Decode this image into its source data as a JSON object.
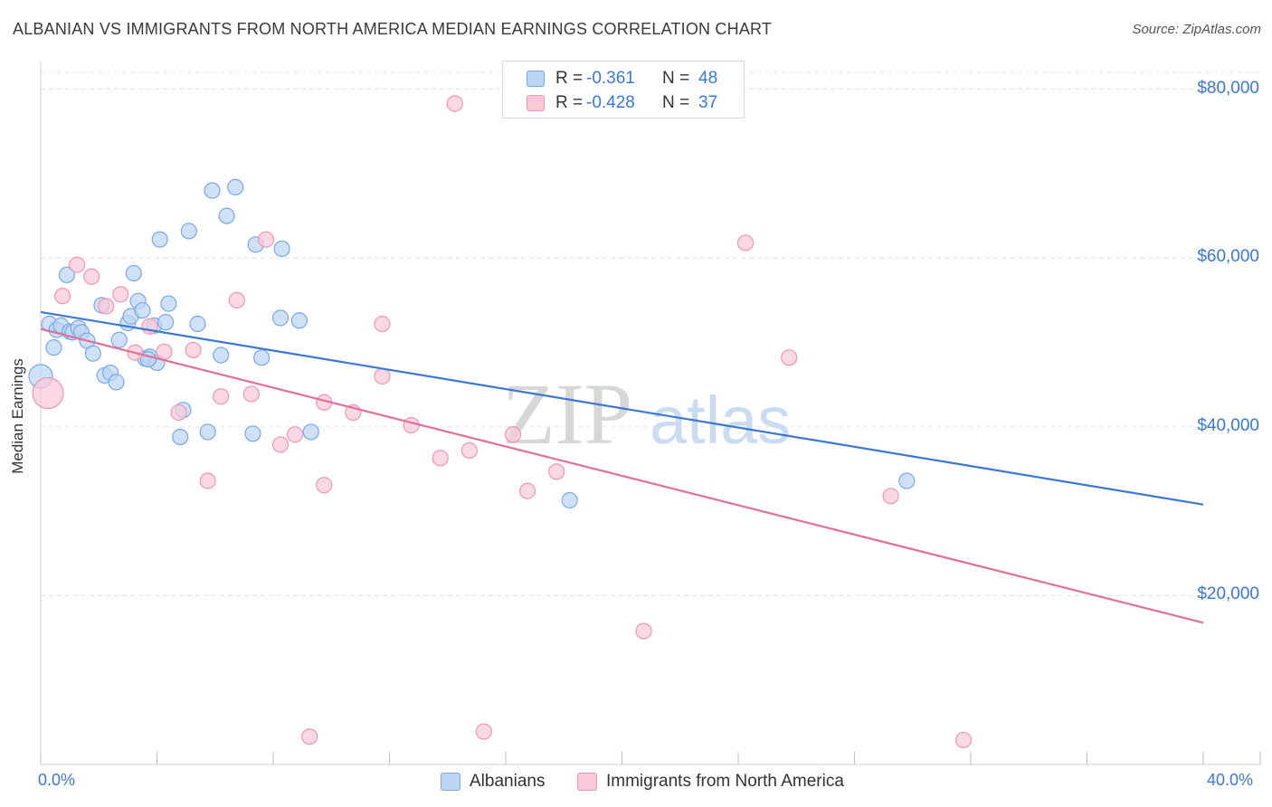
{
  "title": "ALBANIAN VS IMMIGRANTS FROM NORTH AMERICA MEDIAN EARNINGS CORRELATION CHART",
  "source": "Source: ZipAtlas.com",
  "watermark": {
    "zip": "ZIP",
    "atlas": "atlas"
  },
  "legend": {
    "rows": [
      {
        "r_label": "R =",
        "r_value": "-0.361",
        "n_label": "N =",
        "n_value": "48"
      },
      {
        "r_label": "R =",
        "r_value": "-0.428",
        "n_label": "N =",
        "n_value": "37"
      }
    ]
  },
  "bottom_legend": {
    "albanians": "Albanians",
    "immigrants": "Immigrants from North America"
  },
  "axis_labels": {
    "x_min": "0.0%",
    "x_max": "40.0%",
    "y_title": "Median Earnings"
  },
  "y_ticks": [
    "$80,000",
    "$60,000",
    "$40,000",
    "$20,000"
  ],
  "colors": {
    "blue_fill": "#bcd5f4",
    "blue_stroke": "#7aa8e6",
    "blue_line": "#3b78d4",
    "pink_fill": "#f9c9d8",
    "pink_stroke": "#ee97b3",
    "pink_line": "#e0709a",
    "grid": "#e3e3e3",
    "tick_text": "#3b78d4"
  },
  "chart_data": {
    "type": "scatter",
    "title": "ALBANIAN VS IMMIGRANTS FROM NORTH AMERICA MEDIAN EARNINGS CORRELATION CHART",
    "xlabel": "",
    "ylabel": "Median Earnings",
    "xlim": [
      0,
      40
    ],
    "ylim": [
      0,
      82000
    ],
    "y_tick_values": [
      20000,
      40000,
      60000,
      80000
    ],
    "x_tick_values": [
      0,
      4,
      8,
      12,
      16,
      20,
      24,
      28,
      32,
      36,
      40
    ],
    "grid": true,
    "series": [
      {
        "name": "Albanians",
        "color": "#3b78d4",
        "r": -0.361,
        "n": 48,
        "trend": {
          "x": [
            0,
            40
          ],
          "y": [
            53600,
            30800
          ]
        },
        "points": [
          [
            0.0,
            46000
          ],
          [
            0.3,
            52200
          ],
          [
            0.45,
            49400
          ],
          [
            0.55,
            51500
          ],
          [
            0.7,
            52000
          ],
          [
            0.9,
            58000
          ],
          [
            1.0,
            51300
          ],
          [
            1.1,
            51200
          ],
          [
            1.3,
            51700
          ],
          [
            1.4,
            51200
          ],
          [
            1.6,
            50200
          ],
          [
            1.8,
            48700
          ],
          [
            2.1,
            54400
          ],
          [
            2.2,
            46100
          ],
          [
            2.4,
            46400
          ],
          [
            2.6,
            45300
          ],
          [
            2.7,
            50300
          ],
          [
            3.0,
            52300
          ],
          [
            3.1,
            53100
          ],
          [
            3.2,
            58200
          ],
          [
            3.35,
            54900
          ],
          [
            3.5,
            53800
          ],
          [
            3.6,
            48100
          ],
          [
            3.75,
            48300
          ],
          [
            3.9,
            52000
          ],
          [
            4.0,
            47600
          ],
          [
            4.1,
            62200
          ],
          [
            4.3,
            52400
          ],
          [
            4.4,
            54600
          ],
          [
            4.9,
            42000
          ],
          [
            4.8,
            38800
          ],
          [
            5.1,
            63200
          ],
          [
            5.4,
            52200
          ],
          [
            5.75,
            39400
          ],
          [
            5.9,
            68000
          ],
          [
            6.2,
            48500
          ],
          [
            6.4,
            65000
          ],
          [
            6.7,
            68400
          ],
          [
            7.3,
            39200
          ],
          [
            7.4,
            61600
          ],
          [
            7.6,
            48200
          ],
          [
            8.3,
            61100
          ],
          [
            8.25,
            52900
          ],
          [
            8.9,
            52600
          ],
          [
            9.3,
            39400
          ],
          [
            18.2,
            31300
          ],
          [
            29.8,
            33600
          ],
          [
            3.7,
            48000
          ]
        ]
      },
      {
        "name": "Immigrants from North America",
        "color": "#e0709a",
        "r": -0.428,
        "n": 37,
        "trend": {
          "x": [
            0,
            40
          ],
          "y": [
            51600,
            16800
          ]
        },
        "points": [
          [
            0.25,
            44000
          ],
          [
            0.75,
            55500
          ],
          [
            1.25,
            59200
          ],
          [
            1.75,
            57800
          ],
          [
            2.25,
            54300
          ],
          [
            2.75,
            55700
          ],
          [
            3.25,
            48800
          ],
          [
            3.75,
            51900
          ],
          [
            4.25,
            48900
          ],
          [
            4.75,
            41700
          ],
          [
            5.25,
            49100
          ],
          [
            5.75,
            33600
          ],
          [
            6.2,
            43600
          ],
          [
            6.75,
            55000
          ],
          [
            7.25,
            43900
          ],
          [
            7.75,
            62200
          ],
          [
            8.25,
            37900
          ],
          [
            8.75,
            39100
          ],
          [
            9.25,
            3300
          ],
          [
            9.75,
            42900
          ],
          [
            9.75,
            33100
          ],
          [
            10.75,
            41700
          ],
          [
            11.75,
            52200
          ],
          [
            11.75,
            46000
          ],
          [
            12.75,
            40200
          ],
          [
            13.75,
            36300
          ],
          [
            14.25,
            78300
          ],
          [
            14.75,
            37200
          ],
          [
            15.25,
            3900
          ],
          [
            16.25,
            39100
          ],
          [
            16.75,
            32400
          ],
          [
            17.75,
            34700
          ],
          [
            20.75,
            15800
          ],
          [
            24.25,
            61800
          ],
          [
            25.75,
            48200
          ],
          [
            29.25,
            31800
          ],
          [
            31.75,
            2900
          ]
        ]
      }
    ]
  }
}
